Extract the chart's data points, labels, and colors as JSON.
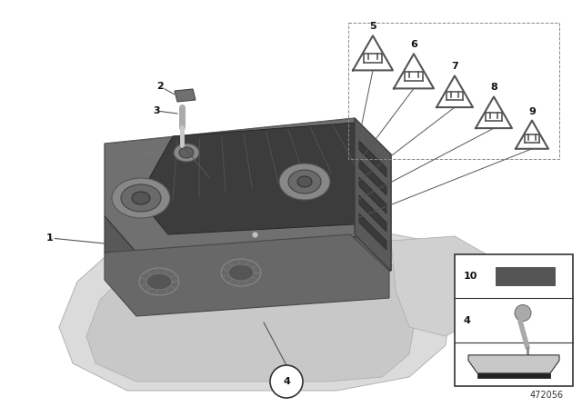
{
  "background_color": "#ffffff",
  "diagram_number": "472056",
  "fig_width": 6.4,
  "fig_height": 4.48,
  "dpi": 100,
  "component_color_top": "#7a7a7a",
  "component_color_mid": "#636363",
  "component_color_dark": "#4a4a4a",
  "component_color_panel": "#3a3a3a",
  "roof_color": "#cccccc",
  "label_fontsize": 8,
  "label_bold": true,
  "triangle_color": "#555555",
  "triangle_lw": 1.5,
  "leader_line_color": "#555555",
  "leader_line_lw": 0.7
}
